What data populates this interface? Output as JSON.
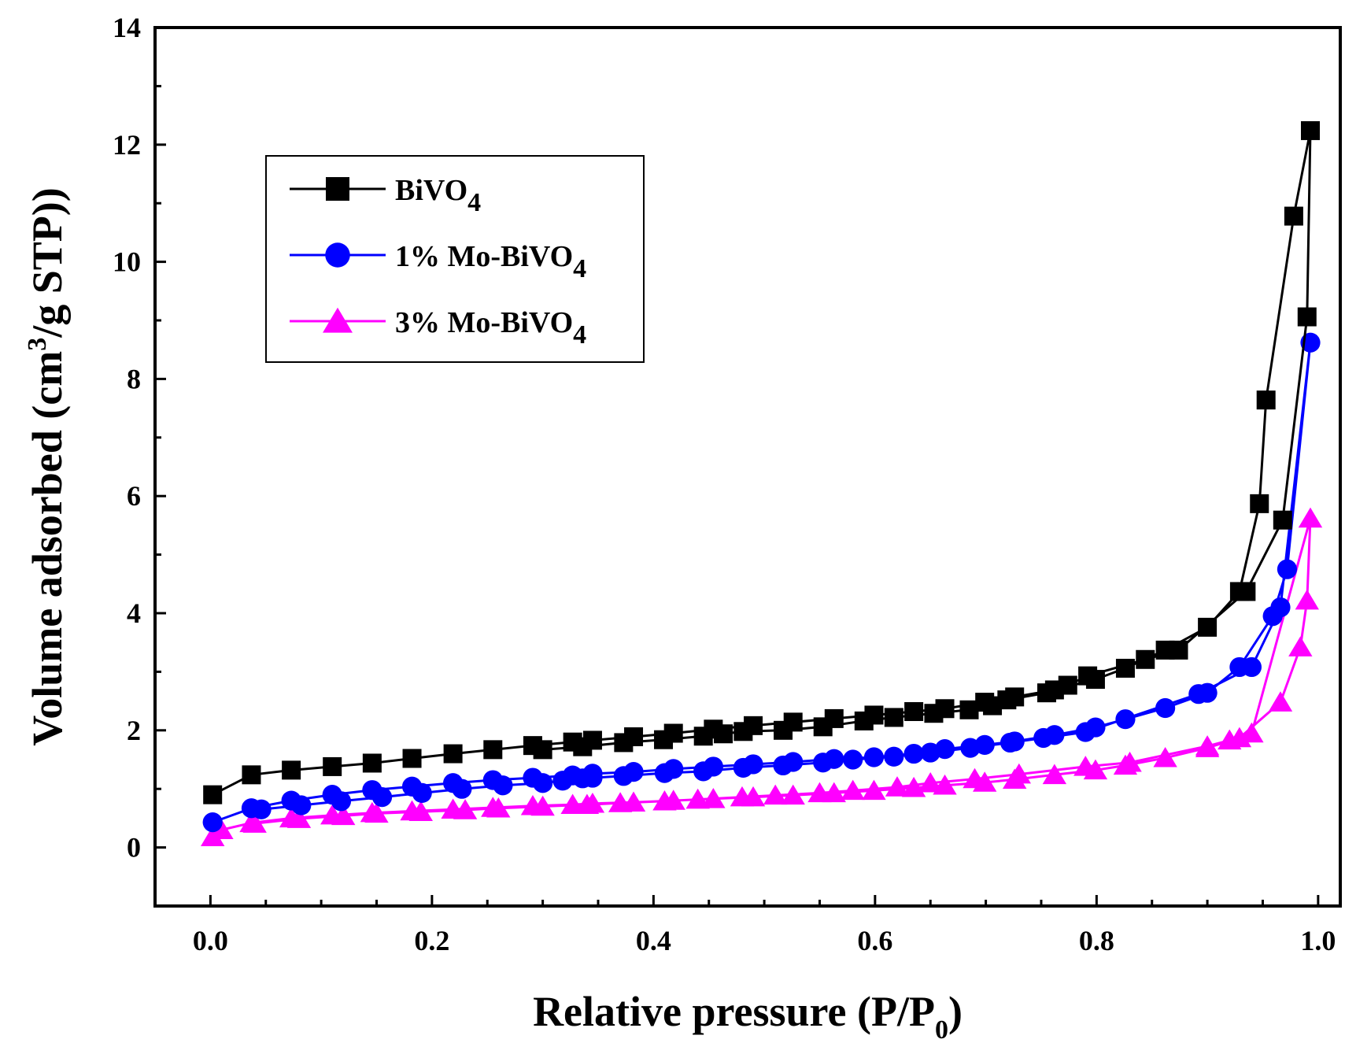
{
  "chart_data": {
    "type": "line",
    "title": "",
    "xlabel": "Relative pressure (P/P",
    "xlabel_sub": "0",
    "xlabel_close": ")",
    "ylabel": "Volume adsorbed (cm",
    "ylabel_sup": "3",
    "ylabel_rest": "/g STP))",
    "xlim": [
      -0.05,
      1.02
    ],
    "ylim": [
      -1,
      14
    ],
    "xticks": [
      0.0,
      0.2,
      0.4,
      0.6,
      0.8,
      1.0
    ],
    "xtick_labels": [
      "0.0",
      "0.2",
      "0.4",
      "0.6",
      "0.8",
      "1.0"
    ],
    "yticks": [
      0,
      2,
      4,
      6,
      8,
      10,
      12,
      14
    ],
    "ytick_labels": [
      "0",
      "2",
      "4",
      "6",
      "8",
      "10",
      "12",
      "14"
    ],
    "legend_position": "top-left",
    "series": [
      {
        "name": "BiVO",
        "name_sub": "4",
        "color": "#000000",
        "marker": "square",
        "adsorption": [
          [
            0.002,
            0.9
          ],
          [
            0.037,
            1.24
          ],
          [
            0.073,
            1.32
          ],
          [
            0.11,
            1.38
          ],
          [
            0.146,
            1.44
          ],
          [
            0.182,
            1.52
          ],
          [
            0.219,
            1.6
          ],
          [
            0.255,
            1.67
          ],
          [
            0.291,
            1.74
          ],
          [
            0.327,
            1.8
          ],
          [
            0.345,
            1.83
          ],
          [
            0.382,
            1.89
          ],
          [
            0.418,
            1.95
          ],
          [
            0.454,
            2.02
          ],
          [
            0.49,
            2.08
          ],
          [
            0.526,
            2.14
          ],
          [
            0.563,
            2.2
          ],
          [
            0.599,
            2.26
          ],
          [
            0.635,
            2.32
          ],
          [
            0.663,
            2.37
          ],
          [
            0.699,
            2.48
          ],
          [
            0.726,
            2.57
          ],
          [
            0.762,
            2.69
          ],
          [
            0.799,
            2.87
          ],
          [
            0.826,
            3.06
          ],
          [
            0.862,
            3.37
          ],
          [
            0.9,
            3.76
          ],
          [
            0.929,
            4.37
          ],
          [
            0.947,
            5.87
          ],
          [
            0.953,
            7.64
          ],
          [
            0.978,
            10.78
          ],
          [
            0.993,
            12.24
          ]
        ],
        "desorption": [
          [
            0.99,
            9.06
          ],
          [
            0.968,
            5.59
          ],
          [
            0.935,
            4.37
          ],
          [
            0.874,
            3.37
          ],
          [
            0.844,
            3.21
          ],
          [
            0.792,
            2.93
          ],
          [
            0.774,
            2.77
          ],
          [
            0.755,
            2.64
          ],
          [
            0.719,
            2.52
          ],
          [
            0.706,
            2.42
          ],
          [
            0.685,
            2.35
          ],
          [
            0.653,
            2.29
          ],
          [
            0.617,
            2.22
          ],
          [
            0.59,
            2.16
          ],
          [
            0.553,
            2.06
          ],
          [
            0.517,
            2.0
          ],
          [
            0.481,
            1.98
          ],
          [
            0.463,
            1.94
          ],
          [
            0.445,
            1.9
          ],
          [
            0.409,
            1.84
          ],
          [
            0.373,
            1.79
          ],
          [
            0.336,
            1.72
          ],
          [
            0.3,
            1.67
          ]
        ]
      },
      {
        "name": "1% Mo-BiVO",
        "name_sub": "4",
        "color": "#0000ff",
        "marker": "circle",
        "adsorption": [
          [
            0.002,
            0.43
          ],
          [
            0.037,
            0.67
          ],
          [
            0.073,
            0.8
          ],
          [
            0.11,
            0.9
          ],
          [
            0.146,
            0.98
          ],
          [
            0.182,
            1.04
          ],
          [
            0.219,
            1.1
          ],
          [
            0.255,
            1.15
          ],
          [
            0.291,
            1.19
          ],
          [
            0.327,
            1.23
          ],
          [
            0.345,
            1.26
          ],
          [
            0.382,
            1.29
          ],
          [
            0.418,
            1.34
          ],
          [
            0.454,
            1.38
          ],
          [
            0.49,
            1.42
          ],
          [
            0.526,
            1.46
          ],
          [
            0.563,
            1.51
          ],
          [
            0.599,
            1.54
          ],
          [
            0.635,
            1.6
          ],
          [
            0.663,
            1.68
          ],
          [
            0.699,
            1.75
          ],
          [
            0.726,
            1.81
          ],
          [
            0.762,
            1.92
          ],
          [
            0.799,
            2.05
          ],
          [
            0.826,
            2.19
          ],
          [
            0.862,
            2.38
          ],
          [
            0.9,
            2.64
          ],
          [
            0.929,
            3.08
          ],
          [
            0.959,
            3.95
          ],
          [
            0.972,
            4.75
          ],
          [
            0.993,
            8.62
          ]
        ],
        "desorption": [
          [
            0.966,
            4.1
          ],
          [
            0.94,
            3.08
          ],
          [
            0.892,
            2.62
          ],
          [
            0.79,
            1.97
          ],
          [
            0.752,
            1.87
          ],
          [
            0.722,
            1.79
          ],
          [
            0.686,
            1.7
          ],
          [
            0.65,
            1.62
          ],
          [
            0.617,
            1.55
          ],
          [
            0.58,
            1.5
          ],
          [
            0.553,
            1.45
          ],
          [
            0.517,
            1.4
          ],
          [
            0.481,
            1.36
          ],
          [
            0.445,
            1.3
          ],
          [
            0.41,
            1.27
          ],
          [
            0.373,
            1.22
          ],
          [
            0.345,
            1.19
          ],
          [
            0.336,
            1.18
          ],
          [
            0.318,
            1.14
          ],
          [
            0.3,
            1.1
          ],
          [
            0.264,
            1.06
          ],
          [
            0.227,
            1.0
          ],
          [
            0.191,
            0.93
          ],
          [
            0.155,
            0.86
          ],
          [
            0.118,
            0.79
          ],
          [
            0.082,
            0.72
          ],
          [
            0.046,
            0.65
          ]
        ]
      },
      {
        "name": "3% Mo-BiVO",
        "name_sub": "4",
        "color": "#ff00ff",
        "marker": "triangle",
        "adsorption": [
          [
            0.002,
            0.18
          ],
          [
            0.01,
            0.3
          ],
          [
            0.037,
            0.42
          ],
          [
            0.073,
            0.5
          ],
          [
            0.11,
            0.55
          ],
          [
            0.146,
            0.59
          ],
          [
            0.182,
            0.62
          ],
          [
            0.219,
            0.65
          ],
          [
            0.255,
            0.68
          ],
          [
            0.291,
            0.71
          ],
          [
            0.327,
            0.73
          ],
          [
            0.345,
            0.75
          ],
          [
            0.382,
            0.77
          ],
          [
            0.418,
            0.8
          ],
          [
            0.454,
            0.83
          ],
          [
            0.49,
            0.86
          ],
          [
            0.526,
            0.89
          ],
          [
            0.563,
            0.93
          ],
          [
            0.599,
            0.97
          ],
          [
            0.635,
            1.02
          ],
          [
            0.663,
            1.06
          ],
          [
            0.699,
            1.11
          ],
          [
            0.726,
            1.16
          ],
          [
            0.762,
            1.24
          ],
          [
            0.799,
            1.32
          ],
          [
            0.826,
            1.4
          ],
          [
            0.862,
            1.53
          ],
          [
            0.9,
            1.7
          ],
          [
            0.929,
            1.87
          ],
          [
            0.966,
            2.48
          ],
          [
            0.984,
            3.42
          ],
          [
            0.99,
            4.22
          ],
          [
            0.993,
            5.62
          ]
        ],
        "desorption": [
          [
            0.94,
            1.95
          ],
          [
            0.92,
            1.83
          ],
          [
            0.9,
            1.73
          ],
          [
            0.83,
            1.45
          ],
          [
            0.79,
            1.38
          ],
          [
            0.73,
            1.25
          ],
          [
            0.69,
            1.17
          ],
          [
            0.65,
            1.1
          ],
          [
            0.62,
            1.03
          ],
          [
            0.58,
            0.97
          ],
          [
            0.55,
            0.93
          ],
          [
            0.51,
            0.89
          ],
          [
            0.48,
            0.86
          ],
          [
            0.44,
            0.82
          ],
          [
            0.41,
            0.79
          ],
          [
            0.37,
            0.76
          ],
          [
            0.34,
            0.73
          ],
          [
            0.3,
            0.7
          ],
          [
            0.26,
            0.67
          ],
          [
            0.23,
            0.64
          ],
          [
            0.19,
            0.61
          ],
          [
            0.15,
            0.58
          ],
          [
            0.12,
            0.54
          ],
          [
            0.08,
            0.49
          ],
          [
            0.04,
            0.41
          ]
        ]
      }
    ]
  }
}
